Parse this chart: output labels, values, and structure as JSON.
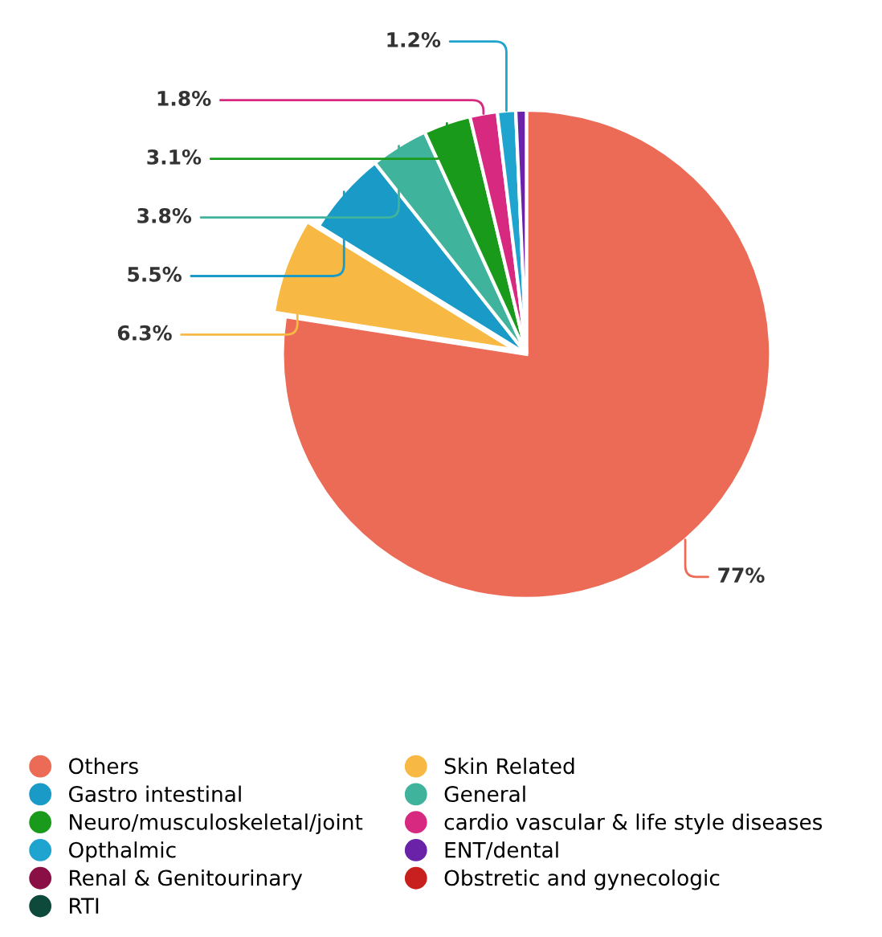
{
  "chart_data": {
    "type": "pie",
    "categories": [
      "Others",
      "Skin Related",
      "Gastro intestinal",
      "General",
      "Neuro/musculoskeletal/joint",
      "cardio vascular & life style diseases",
      "Opthalmic",
      "ENT/dental",
      "Renal & Genitourinary",
      "Obstretic and gynecologic",
      "RTI"
    ],
    "values": [
      77,
      6.3,
      5.5,
      3.8,
      3.1,
      1.8,
      1.2,
      0.7,
      null,
      null,
      null
    ],
    "value_labels": [
      "77%",
      "6.3%",
      "5.5%",
      "3.8%",
      "3.1%",
      "1.8%",
      "1.2%",
      null,
      null,
      null,
      null
    ],
    "colors": [
      "#ec6b56",
      "#f7b944",
      "#1a9bc7",
      "#3fb39b",
      "#1a9a1a",
      "#d6297f",
      "#1fa3cf",
      "#6a23a8",
      "#8a0f45",
      "#c8201e",
      "#0d4a3c"
    ],
    "legend": "bottom"
  }
}
